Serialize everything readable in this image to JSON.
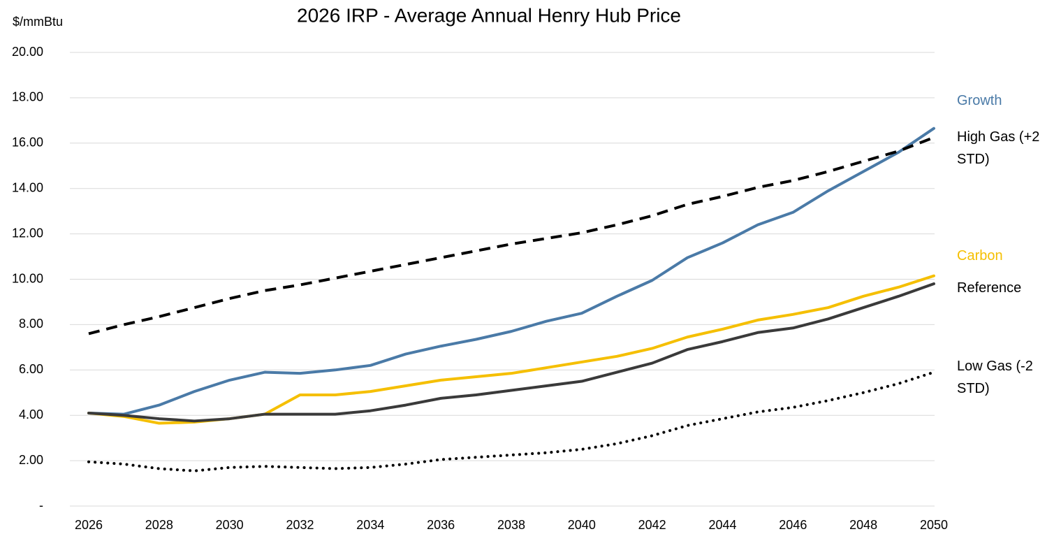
{
  "chart_data": {
    "type": "line",
    "title": "2026 IRP - Average Annual Henry Hub Price",
    "y_label": "$/mmBtu",
    "x": [
      2026,
      2027,
      2028,
      2029,
      2030,
      2031,
      2032,
      2033,
      2034,
      2035,
      2036,
      2037,
      2038,
      2039,
      2040,
      2041,
      2042,
      2043,
      2044,
      2045,
      2046,
      2047,
      2048,
      2049,
      2050
    ],
    "xlim": [
      2026,
      2050
    ],
    "xticks": [
      2026,
      2028,
      2030,
      2032,
      2034,
      2036,
      2038,
      2040,
      2042,
      2044,
      2046,
      2048,
      2050
    ],
    "ylim": [
      0,
      20
    ],
    "yticks": [
      {
        "value": 0,
        "label": "-"
      },
      {
        "value": 2,
        "label": "2.00"
      },
      {
        "value": 4,
        "label": "4.00"
      },
      {
        "value": 6,
        "label": "6.00"
      },
      {
        "value": 8,
        "label": "8.00"
      },
      {
        "value": 10,
        "label": "10.00"
      },
      {
        "value": 12,
        "label": "12.00"
      },
      {
        "value": 14,
        "label": "14.00"
      },
      {
        "value": 16,
        "label": "16.00"
      },
      {
        "value": 18,
        "label": "18.00"
      },
      {
        "value": 20,
        "label": "20.00"
      }
    ],
    "grid": true,
    "series": [
      {
        "name": "Growth",
        "color": "#4a7aa7",
        "dash": "solid",
        "values": [
          4.1,
          4.05,
          4.45,
          5.05,
          5.55,
          5.9,
          5.85,
          6.0,
          6.2,
          6.7,
          7.05,
          7.35,
          7.7,
          8.15,
          8.5,
          9.25,
          9.95,
          10.95,
          11.6,
          12.4,
          12.95,
          13.9,
          14.75,
          15.6,
          16.65
        ]
      },
      {
        "name": "High Gas (+2 STD)",
        "color": "#000000",
        "dash": "dashed",
        "values": [
          7.6,
          8.0,
          8.35,
          8.75,
          9.15,
          9.5,
          9.75,
          10.05,
          10.35,
          10.65,
          10.95,
          11.25,
          11.55,
          11.8,
          12.05,
          12.4,
          12.8,
          13.3,
          13.65,
          14.05,
          14.35,
          14.75,
          15.2,
          15.65,
          16.25
        ]
      },
      {
        "name": "Carbon",
        "color": "#f5bf00",
        "dash": "solid",
        "values": [
          4.1,
          3.95,
          3.65,
          3.7,
          3.85,
          4.05,
          4.9,
          4.9,
          5.05,
          5.3,
          5.55,
          5.7,
          5.85,
          6.1,
          6.35,
          6.6,
          6.95,
          7.45,
          7.8,
          8.2,
          8.45,
          8.75,
          9.25,
          9.65,
          10.15
        ]
      },
      {
        "name": "Reference",
        "color": "#3a3a3a",
        "dash": "solid",
        "values": [
          4.1,
          4.0,
          3.85,
          3.75,
          3.85,
          4.05,
          4.05,
          4.05,
          4.2,
          4.45,
          4.75,
          4.9,
          5.1,
          5.3,
          5.5,
          5.9,
          6.3,
          6.9,
          7.25,
          7.65,
          7.85,
          8.25,
          8.75,
          9.25,
          9.8
        ]
      },
      {
        "name": "Low Gas (-2 STD)",
        "color": "#000000",
        "dash": "dotted",
        "values": [
          1.95,
          1.85,
          1.65,
          1.55,
          1.7,
          1.75,
          1.7,
          1.65,
          1.7,
          1.85,
          2.05,
          2.15,
          2.25,
          2.35,
          2.5,
          2.75,
          3.1,
          3.55,
          3.85,
          4.15,
          4.35,
          4.65,
          5.0,
          5.4,
          5.9
        ]
      }
    ]
  }
}
